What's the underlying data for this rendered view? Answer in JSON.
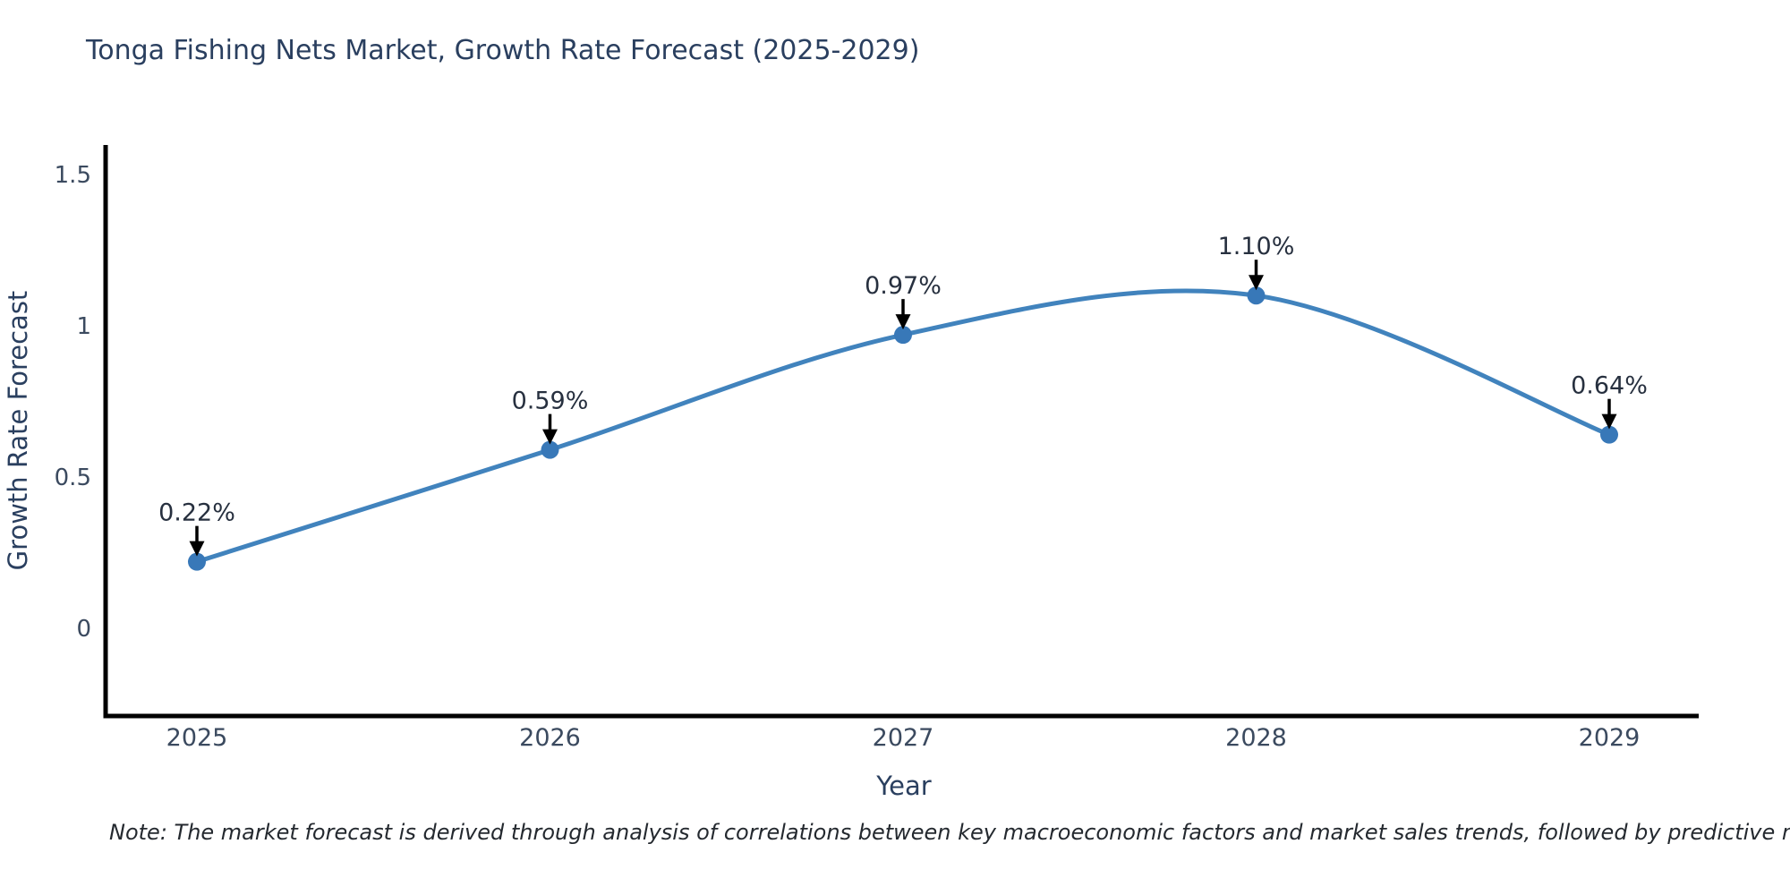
{
  "chart_data": {
    "type": "line",
    "title": "Tonga Fishing Nets Market, Growth Rate Forecast (2025-2029)",
    "xlabel": "Year",
    "ylabel": "Growth Rate Forecast",
    "categories": [
      "2025",
      "2026",
      "2027",
      "2028",
      "2029"
    ],
    "values": [
      0.22,
      0.59,
      0.97,
      1.1,
      0.64
    ],
    "point_labels": [
      "0.22%",
      "0.59%",
      "0.97%",
      "1.10%",
      "0.64%"
    ],
    "yticks": [
      0,
      0.5,
      1,
      1.5
    ],
    "ytick_labels": [
      "0",
      "0.5",
      "1",
      "1.5"
    ],
    "ylim": [
      -0.29,
      1.6
    ],
    "grid": false,
    "legend": "none",
    "line_style": "spline",
    "line_color": "#4183bd",
    "marker_color": "#3878b8",
    "annotation_color": "#000000",
    "note": "Note: The market forecast is derived through analysis of correlations between key macroeconomic factors and market sales trends, followed by predictive modeling to project future sales"
  }
}
